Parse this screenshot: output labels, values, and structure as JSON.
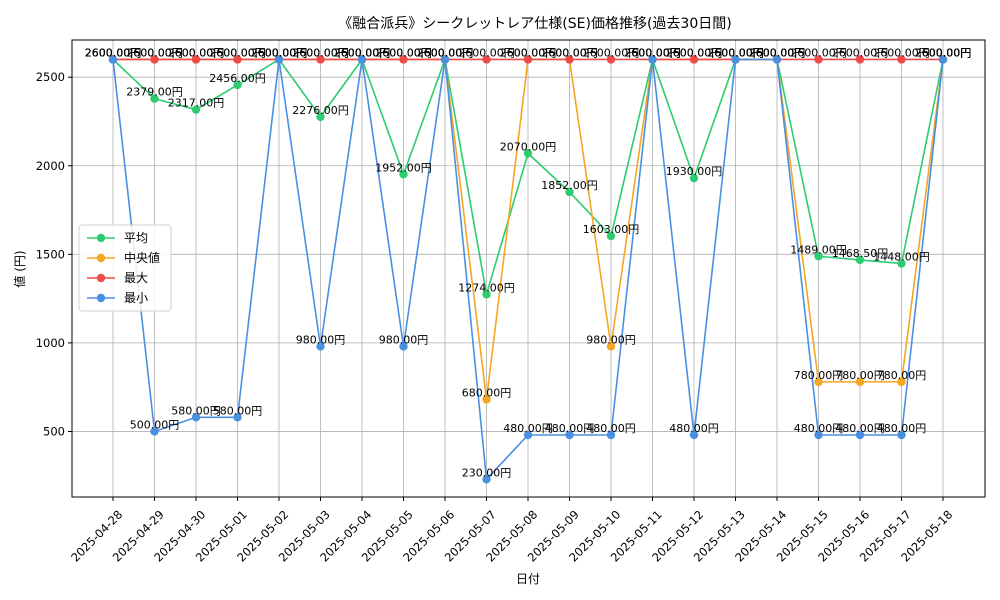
{
  "chart_data": {
    "type": "line",
    "title": "《融合派兵》シークレットレア仕様(SE)価格推移(過去30日間)",
    "xlabel": "日付",
    "ylabel": "値 (円)",
    "ylim": [
      130,
      2710
    ],
    "yticks": [
      500,
      1000,
      1500,
      2000,
      2500
    ],
    "grid": true,
    "legend_position": "center-left",
    "label_suffix": "円",
    "x": [
      "2025-04-28",
      "2025-04-29",
      "2025-04-30",
      "2025-05-01",
      "2025-05-02",
      "2025-05-03",
      "2025-05-04",
      "2025-05-05",
      "2025-05-06",
      "2025-05-07",
      "2025-05-08",
      "2025-05-09",
      "2025-05-10",
      "2025-05-11",
      "2025-05-12",
      "2025-05-13",
      "2025-05-14",
      "2025-05-15",
      "2025-05-16",
      "2025-05-17",
      "2025-05-18"
    ],
    "series": [
      {
        "name": "平均",
        "color": "#2ecc71",
        "values": [
          2600,
          2379,
          2317,
          2456,
          2600,
          2276,
          2600,
          1952,
          2600,
          1274,
          2070,
          1852,
          1603,
          2600,
          1930,
          2600,
          2600,
          1489,
          1468.5,
          1448,
          2600
        ]
      },
      {
        "name": "中央値",
        "color": "#f5a623",
        "values": [
          2600,
          2600,
          2600,
          2600,
          2600,
          2600,
          2600,
          2600,
          2600,
          680,
          2600,
          2600,
          980,
          2600,
          2600,
          2600,
          2600,
          780,
          780,
          780,
          2600
        ]
      },
      {
        "name": "最大",
        "color": "#ef4b4b",
        "values": [
          2600,
          2600,
          2600,
          2600,
          2600,
          2600,
          2600,
          2600,
          2600,
          2600,
          2600,
          2600,
          2600,
          2600,
          2600,
          2600,
          2600,
          2600,
          2600,
          2600,
          2600
        ]
      },
      {
        "name": "最小",
        "color": "#4a90e2",
        "values": [
          2600,
          500,
          580,
          580,
          2600,
          980,
          2600,
          980,
          2600,
          230,
          480,
          480,
          480,
          2600,
          480,
          2600,
          2600,
          480,
          480,
          480,
          2600
        ]
      }
    ]
  }
}
